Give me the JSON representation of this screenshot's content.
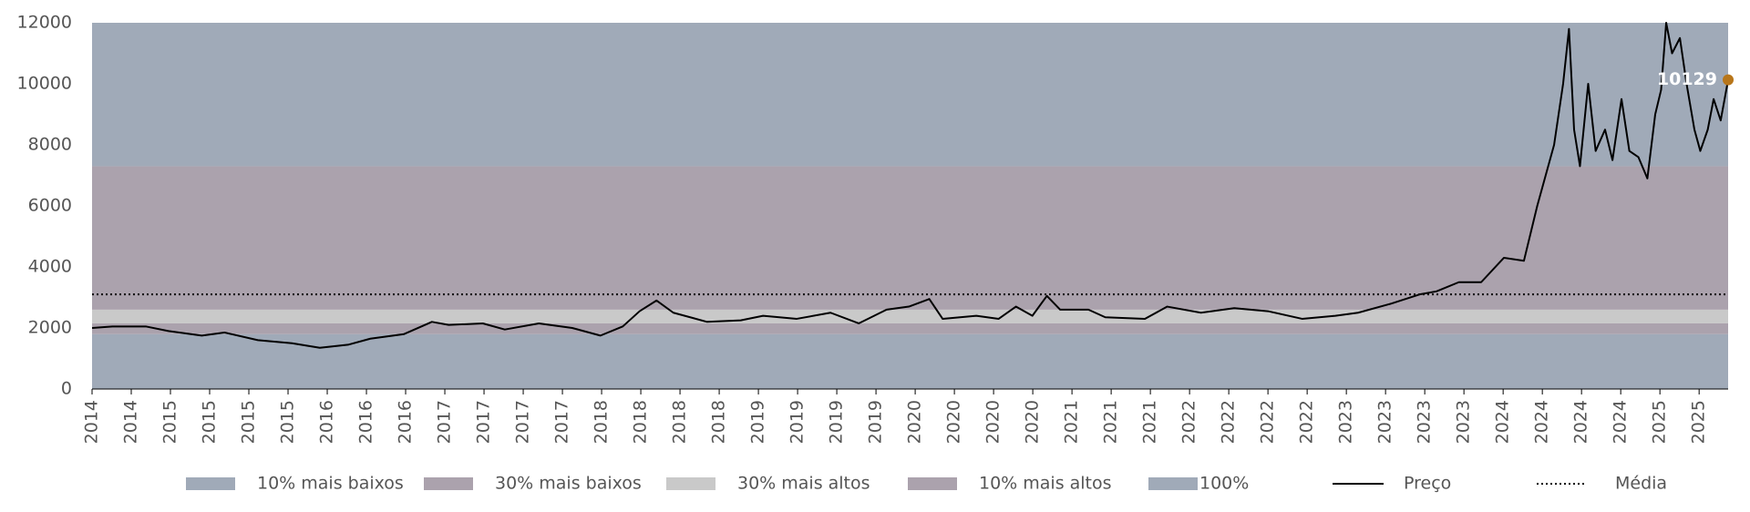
{
  "chart_data": {
    "type": "line",
    "x": [
      0,
      0.52,
      1.37,
      1.95,
      2.8,
      3.38,
      4.23,
      5.1,
      5.81,
      6.53,
      7.1,
      7.96,
      8.67,
      9.1,
      9.97,
      10.53,
      11.4,
      12.25,
      12.97,
      13.54,
      13.97,
      14.4,
      14.83,
      15.69,
      16.55,
      17.12,
      17.98,
      18.84,
      19.56,
      20.27,
      20.84,
      21.36,
      21.7,
      22.56,
      23.13,
      23.57,
      23.99,
      24.36,
      24.7,
      25.42,
      25.85,
      26.86,
      27.43,
      28.29,
      29.14,
      30.0,
      30.87,
      31.72,
      32.3,
      33.15,
      33.87,
      34.3,
      34.87,
      35.44,
      36.02,
      36.53,
      36.87,
      37.3,
      37.53,
      37.68,
      37.81,
      37.96,
      38.17,
      38.36,
      38.6,
      38.79,
      39.02,
      39.22,
      39.45,
      39.68,
      39.88,
      40.03,
      40.16,
      40.31,
      40.51,
      40.68,
      40.88,
      41.03,
      41.22,
      41.37,
      41.55,
      41.74
    ],
    "series": [
      {
        "name": "Preço",
        "color": "#000000",
        "values": [
          2000,
          2050,
          2050,
          1900,
          1750,
          1850,
          1600,
          1500,
          1350,
          1450,
          1650,
          1800,
          2200,
          2100,
          2150,
          1950,
          2150,
          2000,
          1750,
          2050,
          2550,
          2900,
          2500,
          2200,
          2250,
          2400,
          2300,
          2500,
          2150,
          2600,
          2700,
          2950,
          2300,
          2400,
          2300,
          2700,
          2400,
          3050,
          2600,
          2600,
          2350,
          2300,
          2700,
          2500,
          2650,
          2550,
          2300,
          2400,
          2500,
          2800,
          3100,
          3200,
          3500,
          3500,
          4300,
          4200,
          6000,
          8000,
          10000,
          11800,
          8500,
          7300,
          10000,
          7800,
          8500,
          7500,
          9500,
          7800,
          7600,
          6900,
          9000,
          9800,
          12000,
          11000,
          11500,
          10000,
          8500,
          7800,
          8500,
          9500,
          8800,
          10129
        ]
      }
    ],
    "last_point_color": "#b8761a",
    "mean": {
      "name": "Média",
      "value": 3100,
      "color": "#000000"
    },
    "bands": [
      {
        "name": "10% mais baixos",
        "color": "#a0aab8",
        "range": [
          0,
          1800
        ]
      },
      {
        "name": "30% mais baixos",
        "color": "#aba2ad",
        "range": [
          1800,
          2150
        ]
      },
      {
        "name": "30% mais altos",
        "color": "#c9c9c9",
        "range": [
          2150,
          2600
        ]
      },
      {
        "name": "10% mais altos",
        "color": "#aba2ad",
        "range": [
          2600,
          7300
        ]
      },
      {
        "name": "100%",
        "color": "#a0aab8",
        "range": [
          7300,
          12000
        ]
      }
    ],
    "xlim": [
      0,
      41.74
    ],
    "xticks": [
      {
        "value": 0,
        "label": "2014"
      },
      {
        "value": 1,
        "label": "2014"
      },
      {
        "value": 2,
        "label": "2015"
      },
      {
        "value": 3,
        "label": "2015"
      },
      {
        "value": 4,
        "label": "2015"
      },
      {
        "value": 5,
        "label": "2015"
      },
      {
        "value": 6,
        "label": "2016"
      },
      {
        "value": 7,
        "label": "2016"
      },
      {
        "value": 8,
        "label": "2016"
      },
      {
        "value": 9,
        "label": "2017"
      },
      {
        "value": 10,
        "label": "2017"
      },
      {
        "value": 11,
        "label": "2017"
      },
      {
        "value": 12,
        "label": "2017"
      },
      {
        "value": 13,
        "label": "2018"
      },
      {
        "value": 14,
        "label": "2018"
      },
      {
        "value": 15,
        "label": "2018"
      },
      {
        "value": 16,
        "label": "2018"
      },
      {
        "value": 17,
        "label": "2019"
      },
      {
        "value": 18,
        "label": "2019"
      },
      {
        "value": 19,
        "label": "2019"
      },
      {
        "value": 20,
        "label": "2019"
      },
      {
        "value": 21,
        "label": "2020"
      },
      {
        "value": 22,
        "label": "2020"
      },
      {
        "value": 23,
        "label": "2020"
      },
      {
        "value": 24,
        "label": "2020"
      },
      {
        "value": 25,
        "label": "2021"
      },
      {
        "value": 26,
        "label": "2021"
      },
      {
        "value": 27,
        "label": "2021"
      },
      {
        "value": 28,
        "label": "2022"
      },
      {
        "value": 29,
        "label": "2022"
      },
      {
        "value": 30,
        "label": "2022"
      },
      {
        "value": 31,
        "label": "2022"
      },
      {
        "value": 32,
        "label": "2023"
      },
      {
        "value": 33,
        "label": "2023"
      },
      {
        "value": 34,
        "label": "2023"
      },
      {
        "value": 35,
        "label": "2023"
      },
      {
        "value": 36,
        "label": "2024"
      },
      {
        "value": 37,
        "label": "2024"
      },
      {
        "value": 38,
        "label": "2024"
      },
      {
        "value": 39,
        "label": "2024"
      },
      {
        "value": 40,
        "label": "2025"
      },
      {
        "value": 41,
        "label": "2025"
      }
    ],
    "ylim": [
      0,
      12000
    ],
    "yticks": [
      0,
      2000,
      4000,
      6000,
      8000,
      10000,
      12000
    ]
  }
}
